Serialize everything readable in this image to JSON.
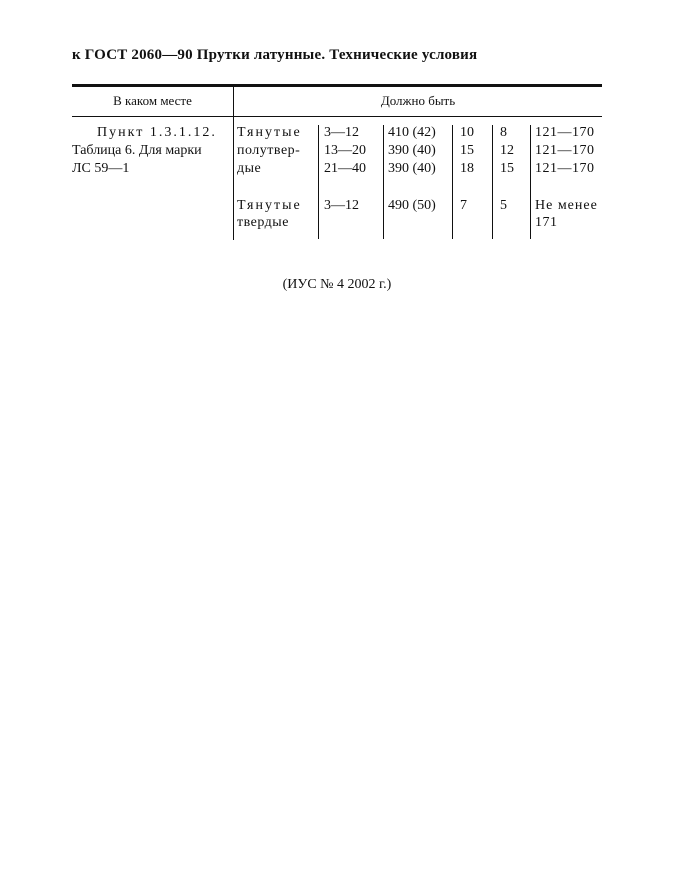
{
  "header": {
    "title": "к ГОСТ 2060—90 Прутки латунные. Технические условия"
  },
  "table": {
    "columns": [
      "В каком месте",
      "Должно быть"
    ],
    "where": [
      "Пункт 1.3.1.12.",
      "Таблица 6. Для марки",
      "ЛС 59—1"
    ],
    "groups": [
      {
        "state": [
          "Тянутые",
          "полутвер-",
          "дые"
        ],
        "rows": [
          [
            "3—12",
            "410 (42)",
            "10",
            "8",
            "121—170"
          ],
          [
            "13—20",
            "390 (40)",
            "15",
            "12",
            "121—170"
          ],
          [
            "21—40",
            "390 (40)",
            "18",
            "15",
            "121—170"
          ]
        ]
      },
      {
        "state": [
          "Тянутые",
          "твердые"
        ],
        "rows": [
          [
            "3—12",
            "490 (50)",
            "7",
            "5",
            "Не менее"
          ]
        ],
        "extra": "171"
      }
    ]
  },
  "footer": {
    "note": "(ИУС № 4 2002 г.)"
  }
}
